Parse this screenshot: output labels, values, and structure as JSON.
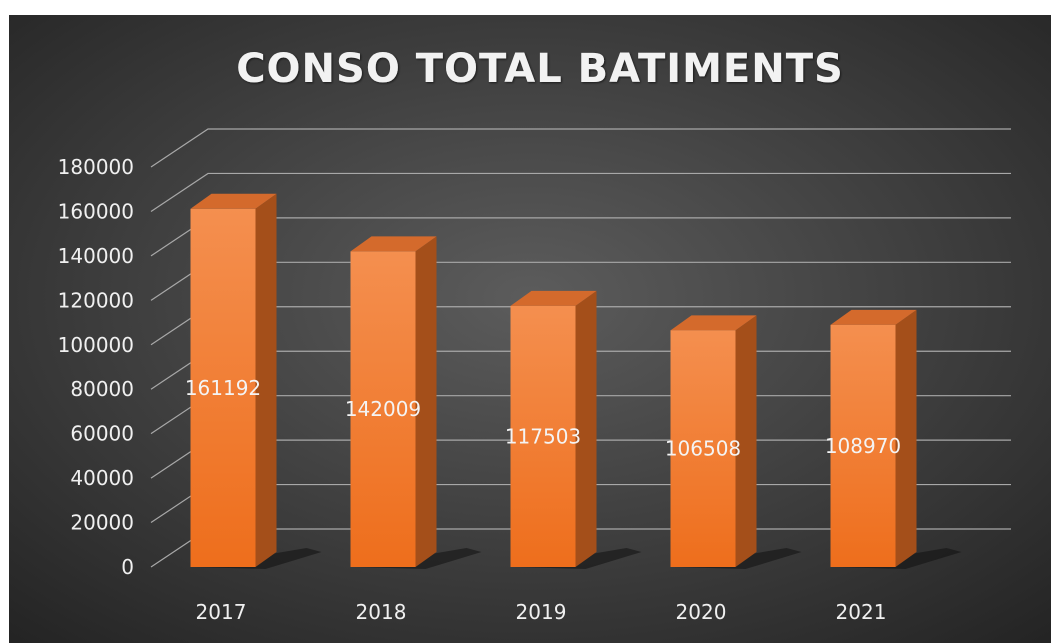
{
  "chart_data": {
    "type": "bar",
    "title": "CONSO TOTAL BATIMENTS",
    "categories": [
      "2017",
      "2018",
      "2019",
      "2020",
      "2021"
    ],
    "values": [
      161192,
      142009,
      117503,
      106508,
      108970
    ],
    "y_ticks": [
      0,
      20000,
      40000,
      60000,
      80000,
      100000,
      120000,
      140000,
      160000,
      180000
    ],
    "ylim": [
      0,
      180000
    ],
    "grid": true,
    "three_d": true,
    "data_labels": true,
    "colors": {
      "background_center": "#5c5c5c",
      "background_edge": "#232323",
      "bar_front_top": "#f48f4f",
      "bar_front_bottom": "#ee6e1c",
      "bar_top": "#d46a2c",
      "bar_side": "#a44f1a",
      "gridline": "#a8a8a8",
      "text": "#f0f0f0"
    }
  }
}
